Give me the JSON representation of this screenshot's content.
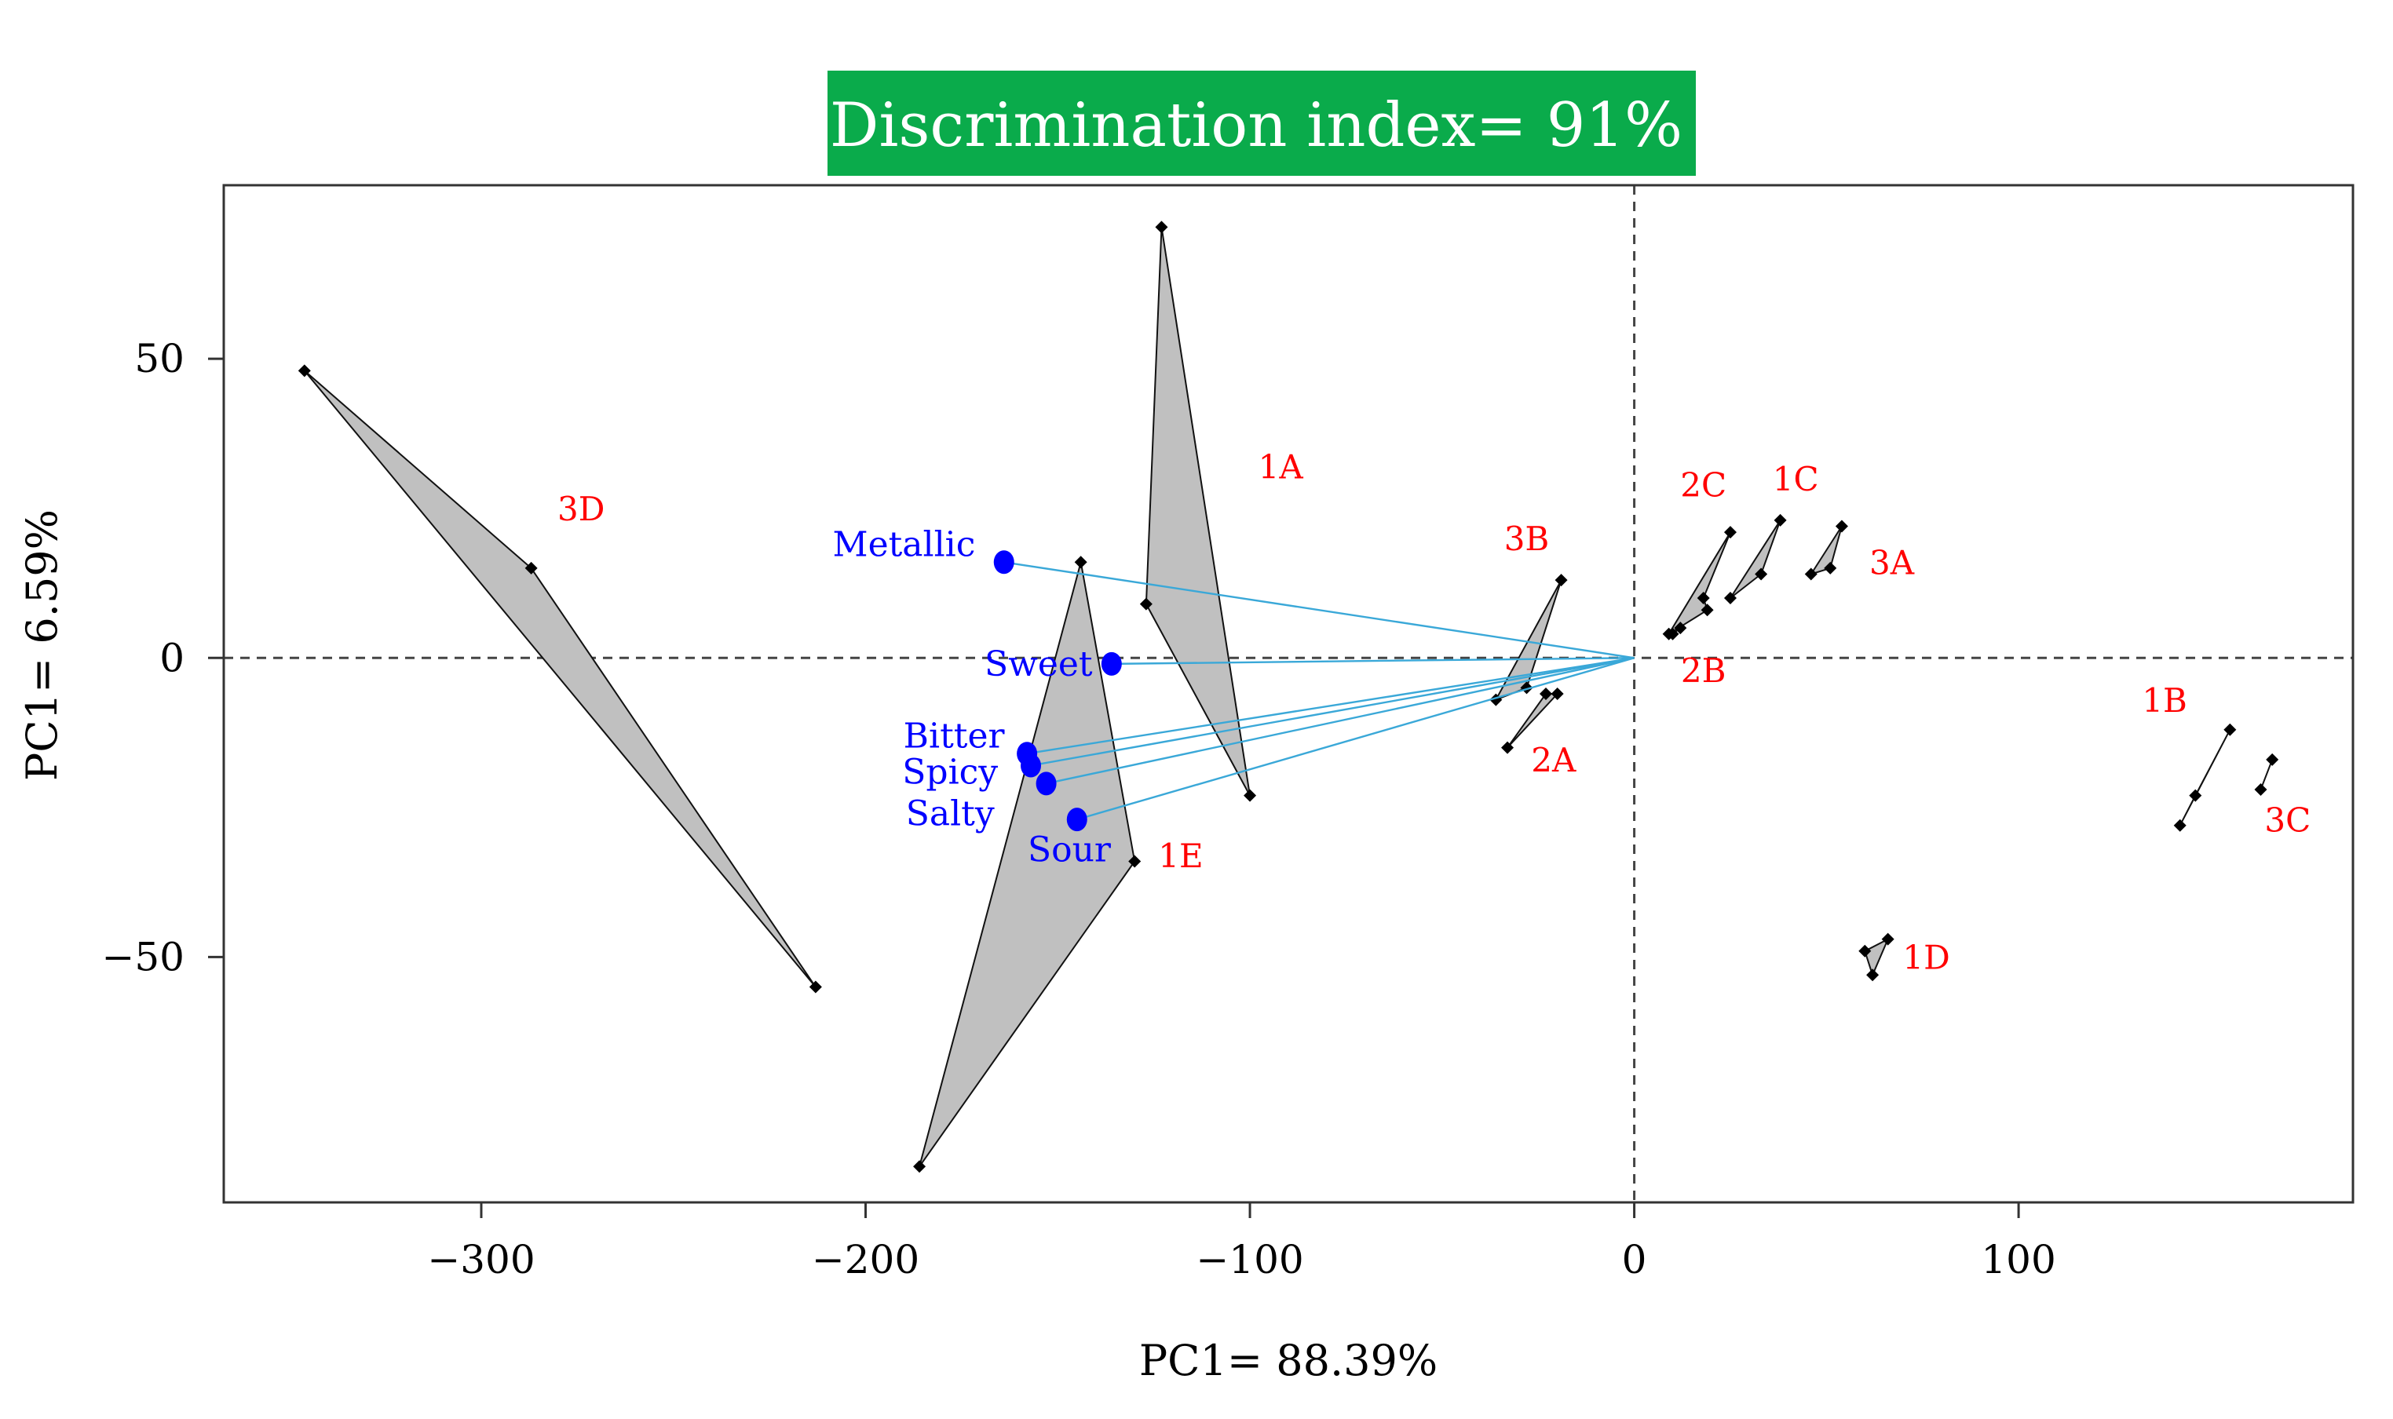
{
  "chart_data": {
    "type": "scatter",
    "subtype": "pca-biplot",
    "title": "Discrimination index= 91%",
    "title_background": "#0aab4b",
    "title_color": "#ffffff",
    "xlabel": "PC1= 88.39%",
    "ylabel": "PC1= 6.59%",
    "xlim": [
      -367,
      187
    ],
    "ylim": [
      -91,
      79
    ],
    "xticks": [
      {
        "value": -300,
        "label": "−300"
      },
      {
        "value": -200,
        "label": "−200"
      },
      {
        "value": -100,
        "label": "−100"
      },
      {
        "value": 0,
        "label": "0"
      },
      {
        "value": 100,
        "label": "100"
      }
    ],
    "yticks": [
      {
        "value": 50,
        "label": "50"
      },
      {
        "value": 0,
        "label": "0"
      },
      {
        "value": -50,
        "label": "−50"
      }
    ],
    "grid": false,
    "reference_lines": [
      {
        "axis": "x",
        "value": 0,
        "style": "dashed"
      },
      {
        "axis": "y",
        "value": 0,
        "style": "dashed"
      }
    ],
    "group_fill": "#c0c0c0",
    "group_label_color": "#ff0000",
    "groups": [
      {
        "name": "3D",
        "points": [
          [
            -346,
            48
          ],
          [
            -287,
            15
          ],
          [
            -213,
            -55
          ]
        ],
        "label_pos": [
          -274,
          23
        ]
      },
      {
        "name": "1A",
        "points": [
          [
            -123,
            72
          ],
          [
            -127,
            9
          ],
          [
            -100,
            -23
          ]
        ],
        "label_pos": [
          -92,
          30
        ]
      },
      {
        "name": "1E",
        "points": [
          [
            -144,
            16
          ],
          [
            -130,
            -34
          ],
          [
            -186,
            -85
          ]
        ],
        "label_pos": [
          -118,
          -35
        ]
      },
      {
        "name": "3B",
        "points": [
          [
            -19,
            13
          ],
          [
            -36,
            -7
          ],
          [
            -28,
            -5
          ]
        ],
        "label_pos": [
          -28,
          18
        ]
      },
      {
        "name": "2A",
        "points": [
          [
            -20,
            -6
          ],
          [
            -33,
            -15
          ],
          [
            -23,
            -6
          ]
        ],
        "label_pos": [
          -21,
          -19
        ]
      },
      {
        "name": "2C",
        "points": [
          [
            25,
            21
          ],
          [
            9,
            4
          ],
          [
            19,
            8
          ],
          [
            18,
            10
          ]
        ],
        "label_pos": [
          18,
          27
        ]
      },
      {
        "name": "1C",
        "points": [
          [
            38,
            23
          ],
          [
            25,
            10
          ],
          [
            33,
            14
          ]
        ],
        "label_pos": [
          42,
          28
        ]
      },
      {
        "name": "3A",
        "points": [
          [
            54,
            22
          ],
          [
            46,
            14
          ],
          [
            51,
            15
          ]
        ],
        "label_pos": [
          67,
          14
        ]
      },
      {
        "name": "2B",
        "points": [
          [
            12,
            5
          ],
          [
            10,
            4
          ]
        ],
        "label_pos": [
          18,
          -4
        ]
      },
      {
        "name": "1B",
        "points": [
          [
            155,
            -12
          ],
          [
            146,
            -23
          ],
          [
            142,
            -28
          ]
        ],
        "label_pos": [
          138,
          -9
        ]
      },
      {
        "name": "3C",
        "points": [
          [
            166,
            -17
          ],
          [
            163,
            -22
          ]
        ],
        "label_pos": [
          170,
          -29
        ]
      },
      {
        "name": "1D",
        "points": [
          [
            66,
            -47
          ],
          [
            60,
            -49
          ],
          [
            62,
            -53
          ]
        ],
        "label_pos": [
          76,
          -52
        ]
      }
    ],
    "loadings_color": "#0000ff",
    "loadings_line_color": "#3aa8d8",
    "loadings": [
      {
        "name": "Metallic",
        "x": -164,
        "y": 16,
        "label_pos": [
          -190,
          17
        ]
      },
      {
        "name": "Sweet",
        "x": -136,
        "y": -1,
        "label_pos": [
          -155,
          -3
        ]
      },
      {
        "name": "Bitter",
        "x": -158,
        "y": -16,
        "label_pos": [
          -177,
          -15
        ]
      },
      {
        "name": "Spicy",
        "x": -157,
        "y": -18,
        "label_pos": [
          -178,
          -21
        ]
      },
      {
        "name": "Salty",
        "x": -153,
        "y": -21,
        "label_pos": [
          -178,
          -28
        ]
      },
      {
        "name": "Sour",
        "x": -145,
        "y": -27,
        "label_pos": [
          -147,
          -34
        ]
      }
    ]
  }
}
